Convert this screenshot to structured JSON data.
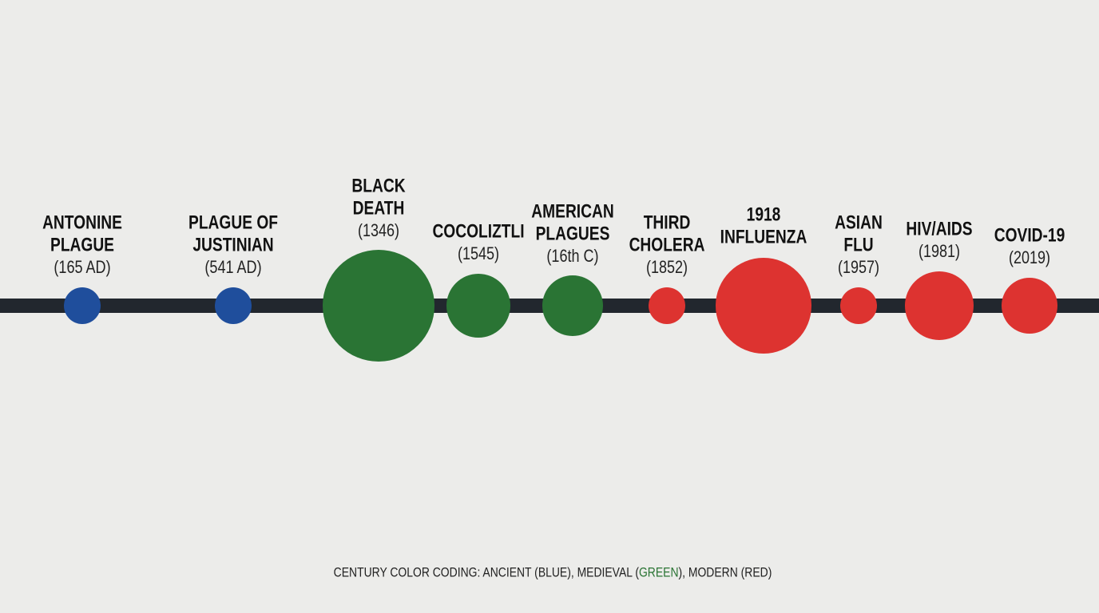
{
  "timeline": {
    "nodes": [
      {
        "title_lines": [
          "ANTONINE",
          "PLAGUE"
        ],
        "date": "(165 AD)",
        "color": "#1f4e9c"
      },
      {
        "title_lines": [
          "PLAGUE OF",
          "JUSTINIAN"
        ],
        "date": "(541 AD)",
        "color": "#1f4e9c"
      },
      {
        "title_lines": [
          "BLACK",
          "DEATH"
        ],
        "date": "(1346)",
        "color": "#2a7434"
      },
      {
        "title_lines": [
          "COCOLIZTLI"
        ],
        "date": "(1545)",
        "color": "#2a7434"
      },
      {
        "title_lines": [
          "AMERICAN",
          "PLAGUES"
        ],
        "date": "(16th C)",
        "color": "#2a7434"
      },
      {
        "title_lines": [
          "THIRD",
          "CHOLERA"
        ],
        "date": "(1852)",
        "color": "#dd3330"
      },
      {
        "title_lines": [
          "1918",
          "INFLUENZA"
        ],
        "color": "#dd3330"
      },
      {
        "title_lines": [
          "ASIAN",
          "FLU"
        ],
        "date": "(1957)",
        "color": "#dd3330"
      },
      {
        "title_lines": [
          "HIV/AIDS"
        ],
        "date": "(1981)",
        "color": "#dd3330"
      },
      {
        "title_lines": [
          "COVID-19"
        ],
        "date": "(2019)",
        "color": "#dd3330"
      }
    ],
    "legend": {
      "parts": [
        "CENTURY COLOR CODING: ANCIENT (BLUE), MEDIEVAL (",
        "GREEN",
        "), MODERN (RED)"
      ],
      "highlight_color": "#2a7434"
    }
  }
}
